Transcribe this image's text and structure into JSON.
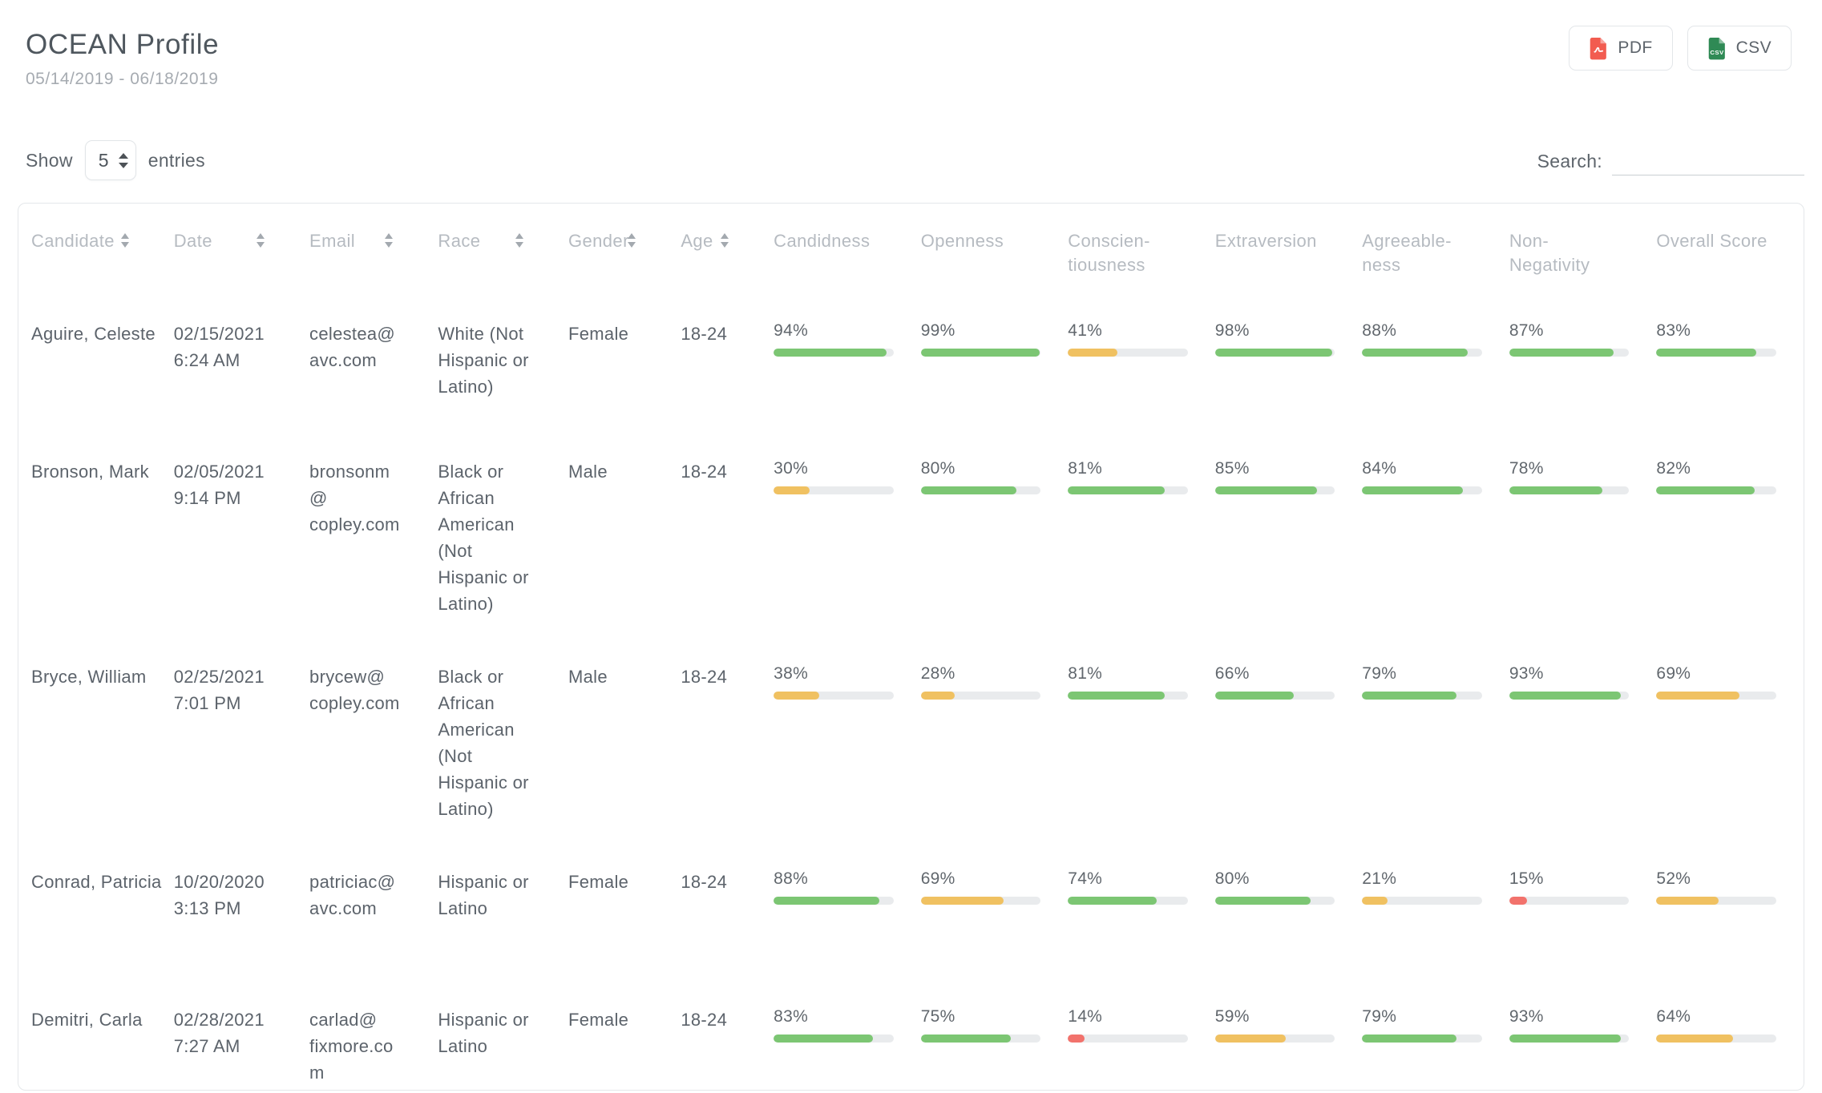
{
  "header": {
    "title": "OCEAN Profile",
    "date_range": "05/14/2019 - 06/18/2019",
    "export": {
      "pdf_label": "PDF",
      "csv_label": "CSV"
    }
  },
  "controls": {
    "show_label": "Show",
    "entries_value": "5",
    "entries_suffix": "entries",
    "search_label": "Search:",
    "search_value": ""
  },
  "colors": {
    "green": "#7cc673",
    "amber": "#f0c161",
    "red": "#f2726c",
    "track": "#e9ebed",
    "pdf_icon": "#f25c50",
    "csv_icon": "#2f8a55"
  },
  "table": {
    "columns": [
      {
        "key": "candidate",
        "label": "Candidate",
        "sortable": true
      },
      {
        "key": "date",
        "label": "Date",
        "sortable": true
      },
      {
        "key": "email",
        "label": "Email",
        "sortable": true
      },
      {
        "key": "race",
        "label": "Race",
        "sortable": true
      },
      {
        "key": "gender",
        "label": "Gender",
        "sortable": true
      },
      {
        "key": "age",
        "label": "Age",
        "sortable": true
      },
      {
        "key": "candidness",
        "label": "Candidness",
        "sortable": false
      },
      {
        "key": "openness",
        "label": "Openness",
        "sortable": false
      },
      {
        "key": "conscientiousness",
        "label": [
          "Conscien-",
          "tiousness"
        ],
        "sortable": false
      },
      {
        "key": "extraversion",
        "label": "Extraversion",
        "sortable": false
      },
      {
        "key": "agreeableness",
        "label": [
          "Agreeable-",
          "ness"
        ],
        "sortable": false
      },
      {
        "key": "non_negativity",
        "label": [
          "Non-",
          "Negativity"
        ],
        "sortable": false
      },
      {
        "key": "overall_score",
        "label": "Overall Score",
        "sortable": false
      }
    ],
    "rows": [
      {
        "candidate": "Aguire, Celeste",
        "date": [
          "02/15/2021",
          "6:24 AM"
        ],
        "email": "celestea@avc.com",
        "race": "White (Not Hispanic or Latino)",
        "gender": "Female",
        "age": "18-24",
        "scores": [
          {
            "display": "94%",
            "color": "green"
          },
          {
            "display": "99%",
            "color": "green"
          },
          {
            "display": "41%",
            "color": "amber"
          },
          {
            "display": "98%",
            "color": "green"
          },
          {
            "display": "88%",
            "color": "green"
          },
          {
            "display": "87%",
            "color": "green"
          },
          {
            "display": "83%",
            "color": "green"
          }
        ]
      },
      {
        "candidate": "Bronson, Mark",
        "date": [
          "02/05/2021",
          "9:14 PM"
        ],
        "email": "bronsonm@copley.com",
        "race": "Black or African American (Not Hispanic or Latino)",
        "gender": "Male",
        "age": "18-24",
        "scores": [
          {
            "display": "30%",
            "color": "amber"
          },
          {
            "display": "80%",
            "color": "green"
          },
          {
            "display": "81%",
            "color": "green"
          },
          {
            "display": "85%",
            "color": "green"
          },
          {
            "display": "84%",
            "color": "green"
          },
          {
            "display": "78%",
            "color": "green"
          },
          {
            "display": "82%",
            "color": "green"
          }
        ]
      },
      {
        "candidate": "Bryce, William",
        "date": [
          "02/25/2021",
          "7:01 PM"
        ],
        "email": "brycew@copley.com",
        "race": "Black or African American (Not Hispanic or Latino)",
        "gender": "Male",
        "age": "18-24",
        "scores": [
          {
            "display": "38%",
            "color": "amber"
          },
          {
            "display": "28%",
            "color": "amber"
          },
          {
            "display": "81%",
            "color": "green"
          },
          {
            "display": "66%",
            "color": "green"
          },
          {
            "display": "79%",
            "color": "green"
          },
          {
            "display": "93%",
            "color": "green"
          },
          {
            "display": "69%",
            "color": "amber"
          }
        ]
      },
      {
        "candidate": "Conrad, Patricia",
        "date": [
          "10/20/2020",
          "3:13 PM"
        ],
        "email": "patriciac@avc.com",
        "race": "Hispanic or Latino",
        "gender": "Female",
        "age": "18-24",
        "scores": [
          {
            "display": "88%",
            "color": "green"
          },
          {
            "display": "69%",
            "color": "amber"
          },
          {
            "display": "74%",
            "color": "green"
          },
          {
            "display": "80%",
            "color": "green"
          },
          {
            "display": "21%",
            "color": "amber"
          },
          {
            "display": "15%",
            "color": "red"
          },
          {
            "display": "52%",
            "color": "amber"
          }
        ]
      },
      {
        "candidate": "Demitri, Carla",
        "date": [
          "02/28/2021",
          "7:27 AM"
        ],
        "email": "carlad@fixmore.com",
        "race": "Hispanic or Latino",
        "gender": "Female",
        "age": "18-24",
        "scores": [
          {
            "display": "83%",
            "color": "green"
          },
          {
            "display": "75%",
            "color": "green"
          },
          {
            "display": "14%",
            "color": "red"
          },
          {
            "display": "59%",
            "color": "amber"
          },
          {
            "display": "79%",
            "color": "green"
          },
          {
            "display": "93%",
            "color": "green"
          },
          {
            "display": "64%",
            "color": "amber"
          }
        ]
      }
    ]
  }
}
